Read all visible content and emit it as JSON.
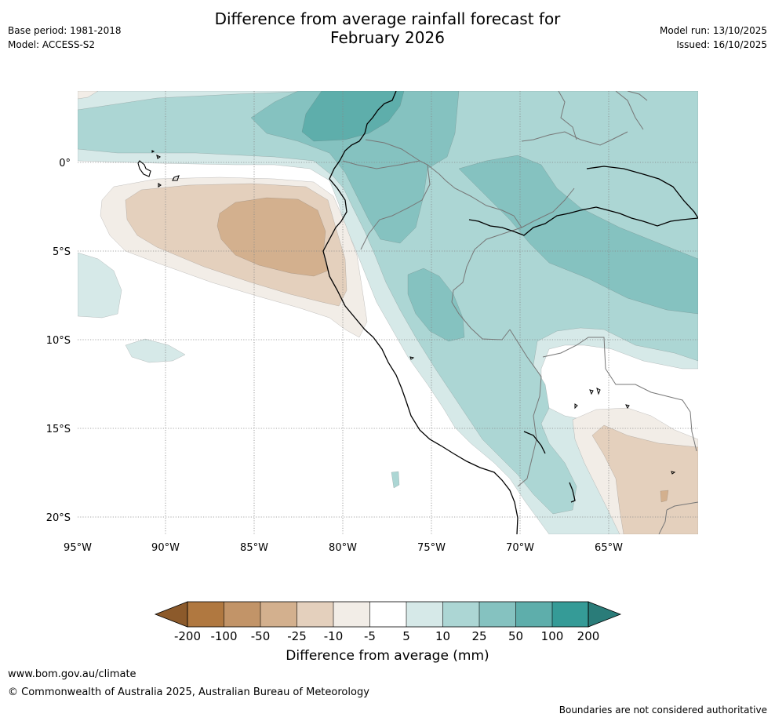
{
  "title": {
    "line1": "Difference from average rainfall forecast for",
    "line2": "February 2026"
  },
  "meta_left": {
    "base_period": "Base period: 1981-2018",
    "model": "Model: ACCESS-S2"
  },
  "meta_right": {
    "model_run": "Model run: 13/10/2025",
    "issued": "Issued: 16/10/2025"
  },
  "axes": {
    "lon_labels": [
      "95°W",
      "90°W",
      "85°W",
      "80°W",
      "75°W",
      "70°W",
      "65°W"
    ],
    "lat_labels": [
      "0°",
      "5°S",
      "10°S",
      "15°S",
      "20°S"
    ]
  },
  "colorbar": {
    "label": "Difference from average (mm)",
    "ticks": [
      "-200",
      "-100",
      "-50",
      "-25",
      "-10",
      "-5",
      "5",
      "10",
      "25",
      "50",
      "100",
      "200"
    ],
    "colors": [
      "#8c5a2b",
      "#b07840",
      "#c29468",
      "#d3b08e",
      "#e4d0bd",
      "#f2ede7",
      "#ffffff",
      "#d6e9e8",
      "#acd6d4",
      "#85c2c0",
      "#5eaeab",
      "#359b97",
      "#2a7c79"
    ]
  },
  "colors": {
    "dry_light": "#f2ede7",
    "dry_mid": "#e4d0bd",
    "dry_dark": "#d3b08e",
    "wet_light": "#d6e9e8",
    "wet_mid": "#acd6d4",
    "wet_dark": "#85c2c0",
    "wet_darker": "#5eaeab"
  },
  "footer": {
    "website": "www.bom.gov.au/climate",
    "copyright": "© Commonwealth of Australia 2025, Australian Bureau of Meteorology",
    "disclaimer": "Boundaries are not considered authoritative"
  }
}
